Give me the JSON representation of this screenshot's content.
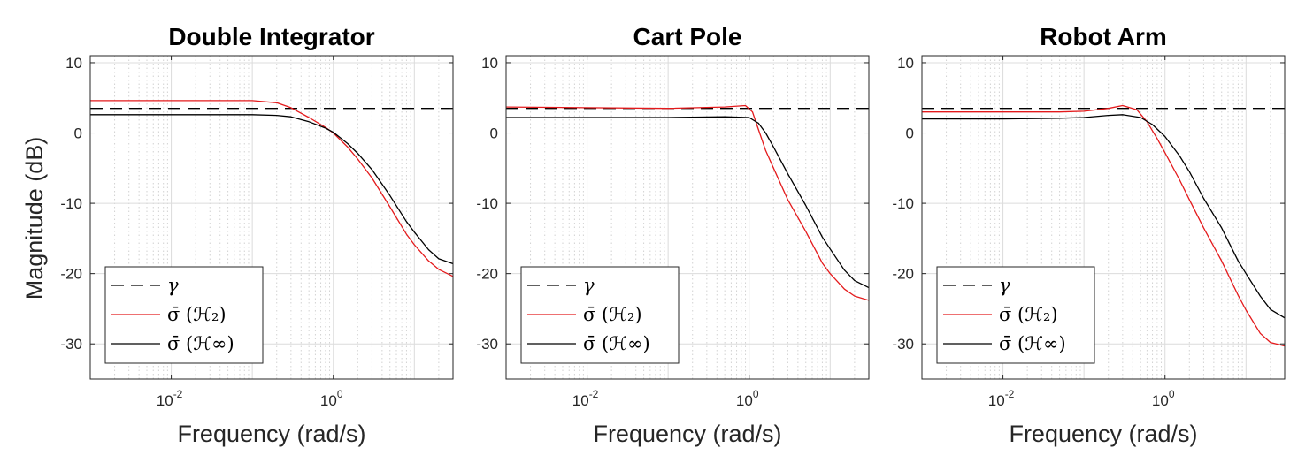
{
  "figure": {
    "ylabel": "Magnitude (dB)",
    "xlabel": "Frequency (rad/s)"
  },
  "chart_data": [
    {
      "type": "line",
      "title": "Double Integrator",
      "xlabel": "Frequency (rad/s)",
      "ylabel": "Magnitude (dB)",
      "x_scale": "log",
      "xlim": [
        0.001,
        30
      ],
      "ylim": [
        -35,
        11
      ],
      "yticks": [
        10,
        0,
        -10,
        -20,
        -30
      ],
      "ytick_labels": [
        "10",
        "0",
        "-10",
        "-20",
        "-30"
      ],
      "xticks": [
        0.01,
        1
      ],
      "xtick_labels": [
        "10",
        "10"
      ],
      "xtick_exponents": [
        "-2",
        "0"
      ],
      "grid": true,
      "legend_position": "bottom-left",
      "series": [
        {
          "name": "γ",
          "style": "dashed",
          "color": "#000000",
          "x": [
            0.001,
            30
          ],
          "y": [
            3.5,
            3.5
          ]
        },
        {
          "name": "σ̄ (ℋ₂)",
          "style": "solid",
          "color": "#e41a1c",
          "x": [
            0.001,
            0.01,
            0.1,
            0.2,
            0.3,
            0.5,
            0.8,
            1,
            1.5,
            2,
            3,
            5,
            8,
            10,
            15,
            20,
            30
          ],
          "y": [
            4.6,
            4.6,
            4.6,
            4.3,
            3.6,
            2.2,
            0.8,
            0.0,
            -2.0,
            -3.7,
            -6.4,
            -10.5,
            -14.4,
            -15.9,
            -18.2,
            -19.4,
            -20.4
          ]
        },
        {
          "name": "σ̄ (ℋ∞)",
          "style": "solid",
          "color": "#000000",
          "x": [
            0.001,
            0.01,
            0.1,
            0.2,
            0.3,
            0.5,
            0.8,
            1,
            1.5,
            2,
            3,
            5,
            8,
            10,
            15,
            20,
            30
          ],
          "y": [
            2.6,
            2.6,
            2.6,
            2.5,
            2.3,
            1.6,
            0.7,
            0.1,
            -1.5,
            -2.9,
            -5.2,
            -8.9,
            -12.6,
            -14.1,
            -16.6,
            -17.9,
            -18.6
          ]
        }
      ]
    },
    {
      "type": "line",
      "title": "Cart Pole",
      "xlabel": "Frequency (rad/s)",
      "ylabel": "",
      "x_scale": "log",
      "xlim": [
        0.001,
        30
      ],
      "ylim": [
        -35,
        11
      ],
      "yticks": [
        10,
        0,
        -10,
        -20,
        -30
      ],
      "ytick_labels": [
        "10",
        "0",
        "-10",
        "-20",
        "-30"
      ],
      "xticks": [
        0.01,
        1
      ],
      "xtick_labels": [
        "10",
        "10"
      ],
      "xtick_exponents": [
        "-2",
        "0"
      ],
      "grid": true,
      "legend_position": "bottom-left",
      "series": [
        {
          "name": "γ",
          "style": "dashed",
          "color": "#000000",
          "x": [
            0.001,
            30
          ],
          "y": [
            3.5,
            3.5
          ]
        },
        {
          "name": "σ̄ (ℋ₂)",
          "style": "solid",
          "color": "#e41a1c",
          "x": [
            0.001,
            0.01,
            0.1,
            0.5,
            0.9,
            1.1,
            1.3,
            1.6,
            2,
            3,
            5,
            8,
            10,
            15,
            20,
            30
          ],
          "y": [
            3.7,
            3.6,
            3.5,
            3.7,
            3.9,
            3.0,
            0.5,
            -2.5,
            -5.0,
            -9.5,
            -14.0,
            -18.5,
            -20.0,
            -22.2,
            -23.2,
            -23.8
          ]
        },
        {
          "name": "σ̄ (ℋ∞)",
          "style": "solid",
          "color": "#000000",
          "x": [
            0.001,
            0.01,
            0.1,
            0.5,
            1,
            1.3,
            1.6,
            2,
            3,
            5,
            8,
            10,
            15,
            20,
            30
          ],
          "y": [
            2.2,
            2.2,
            2.2,
            2.3,
            2.2,
            1.4,
            0.0,
            -2.0,
            -5.8,
            -10.3,
            -14.8,
            -16.5,
            -19.5,
            -21.0,
            -22.0
          ]
        }
      ]
    },
    {
      "type": "line",
      "title": "Robot Arm",
      "xlabel": "Frequency (rad/s)",
      "ylabel": "",
      "x_scale": "log",
      "xlim": [
        0.001,
        30
      ],
      "ylim": [
        -35,
        11
      ],
      "yticks": [
        10,
        0,
        -10,
        -20,
        -30
      ],
      "ytick_labels": [
        "10",
        "0",
        "-10",
        "-20",
        "-30"
      ],
      "xticks": [
        0.01,
        1
      ],
      "xtick_labels": [
        "10",
        "10"
      ],
      "xtick_exponents": [
        "-2",
        "0"
      ],
      "grid": true,
      "legend_position": "bottom-left",
      "series": [
        {
          "name": "γ",
          "style": "dashed",
          "color": "#000000",
          "x": [
            0.001,
            30
          ],
          "y": [
            3.5,
            3.5
          ]
        },
        {
          "name": "σ̄ (ℋ₂)",
          "style": "solid",
          "color": "#e41a1c",
          "x": [
            0.001,
            0.01,
            0.05,
            0.1,
            0.2,
            0.3,
            0.45,
            0.6,
            0.8,
            1,
            1.5,
            2,
            3,
            5,
            8,
            10,
            15,
            20,
            30
          ],
          "y": [
            3.0,
            3.0,
            3.0,
            3.1,
            3.5,
            3.9,
            3.3,
            1.6,
            -0.8,
            -2.8,
            -6.6,
            -9.5,
            -13.5,
            -18.2,
            -23.1,
            -25.2,
            -28.5,
            -29.8,
            -30.3
          ]
        },
        {
          "name": "σ̄ (ℋ∞)",
          "style": "solid",
          "color": "#000000",
          "x": [
            0.001,
            0.01,
            0.05,
            0.1,
            0.2,
            0.3,
            0.5,
            0.7,
            1,
            1.5,
            2,
            3,
            5,
            8,
            10,
            15,
            20,
            30
          ],
          "y": [
            2.0,
            2.0,
            2.1,
            2.2,
            2.5,
            2.6,
            2.2,
            1.2,
            -0.5,
            -3.2,
            -5.5,
            -9.3,
            -13.5,
            -18.2,
            -20.0,
            -23.2,
            -25.1,
            -26.3
          ]
        }
      ]
    }
  ]
}
